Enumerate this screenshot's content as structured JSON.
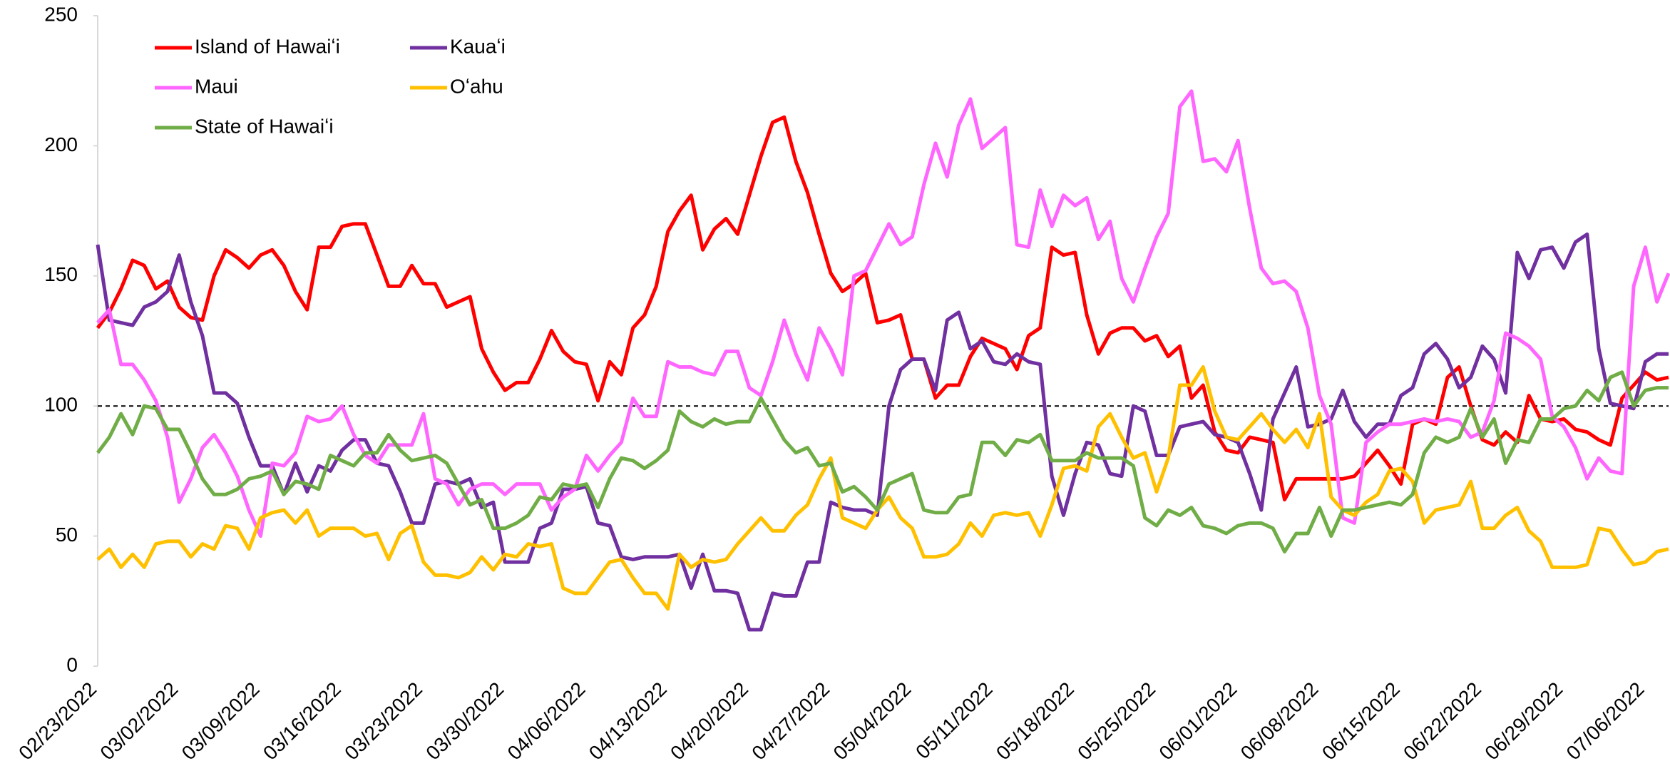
{
  "chart_data": {
    "type": "line",
    "categories": [
      "02/23/2022",
      null,
      null,
      null,
      null,
      null,
      null,
      "03/02/2022",
      null,
      null,
      null,
      null,
      null,
      null,
      "03/09/2022",
      null,
      null,
      null,
      null,
      null,
      null,
      "03/16/2022",
      null,
      null,
      null,
      null,
      null,
      null,
      "03/23/2022",
      null,
      null,
      null,
      null,
      null,
      null,
      "03/30/2022",
      null,
      null,
      null,
      null,
      null,
      null,
      "04/06/2022",
      null,
      null,
      null,
      null,
      null,
      null,
      "04/13/2022",
      null,
      null,
      null,
      null,
      null,
      null,
      "04/20/2022",
      null,
      null,
      null,
      null,
      null,
      null,
      "04/27/2022",
      null,
      null,
      null,
      null,
      null,
      null,
      "05/04/2022",
      null,
      null,
      null,
      null,
      null,
      null,
      "05/11/2022",
      null,
      null,
      null,
      null,
      null,
      null,
      "05/18/2022",
      null,
      null,
      null,
      null,
      null,
      null,
      "05/25/2022",
      null,
      null,
      null,
      null,
      null,
      null,
      "06/01/2022",
      null,
      null,
      null,
      null,
      null,
      null,
      "06/08/2022",
      null,
      null,
      null,
      null,
      null,
      null,
      "06/15/2022",
      null,
      null,
      null,
      null,
      null,
      null,
      "06/22/2022",
      null,
      null,
      null,
      null,
      null,
      null,
      "06/29/2022",
      null,
      null,
      null,
      null,
      null,
      null,
      "07/06/2022",
      null,
      null
    ],
    "series": [
      {
        "name": "Island of Hawaiʻi",
        "color": "#ff0000",
        "values": [
          130,
          136,
          145,
          156,
          154,
          145,
          148,
          138,
          134,
          133,
          150,
          160,
          157,
          153,
          158,
          160,
          154,
          144,
          137,
          161,
          161,
          169,
          170,
          170,
          158,
          146,
          146,
          154,
          147,
          147,
          138,
          140,
          142,
          122,
          113,
          106,
          109,
          109,
          118,
          129,
          121,
          117,
          116,
          102,
          117,
          112,
          130,
          135,
          146,
          167,
          175,
          181,
          160,
          168,
          172,
          166,
          181,
          196,
          209,
          211,
          194,
          182,
          166,
          151,
          144,
          147,
          151,
          132,
          133,
          135,
          118,
          118,
          103,
          108,
          108,
          119,
          126,
          124,
          122,
          114,
          127,
          130,
          161,
          158,
          159,
          135,
          120,
          128,
          130,
          130,
          125,
          127,
          119,
          123,
          103,
          108,
          90,
          83,
          82,
          88,
          87,
          86,
          64,
          72,
          72,
          72,
          72,
          72,
          73,
          78,
          83,
          77,
          70,
          93,
          95,
          93,
          111,
          115,
          100,
          87,
          85,
          90,
          86,
          104,
          95,
          94,
          95,
          91,
          90,
          87,
          85,
          103,
          108,
          113,
          110,
          111
        ]
      },
      {
        "name": "Kauaʻi",
        "color": "#7030a0",
        "values": [
          162,
          133,
          132,
          131,
          138,
          140,
          144,
          158,
          140,
          127,
          105,
          105,
          101,
          88,
          77,
          77,
          66,
          78,
          67,
          77,
          75,
          83,
          87,
          87,
          78,
          77,
          67,
          55,
          55,
          70,
          71,
          70,
          72,
          61,
          63,
          40,
          40,
          40,
          53,
          55,
          68,
          68,
          69,
          55,
          54,
          42,
          41,
          42,
          42,
          42,
          43,
          30,
          43,
          29,
          29,
          28,
          14,
          14,
          28,
          27,
          27,
          40,
          40,
          63,
          61,
          60,
          60,
          58,
          100,
          114,
          118,
          118,
          106,
          133,
          136,
          122,
          125,
          117,
          116,
          120,
          117,
          116,
          73,
          58,
          74,
          86,
          85,
          74,
          73,
          100,
          98,
          81,
          81,
          92,
          93,
          94,
          89,
          88,
          86,
          74,
          60,
          95,
          105,
          115,
          92,
          93,
          95,
          106,
          94,
          88,
          93,
          93,
          104,
          107,
          120,
          124,
          118,
          107,
          111,
          123,
          118,
          105,
          159,
          149,
          160,
          161,
          153,
          163,
          166,
          122,
          101,
          100,
          99,
          117,
          120,
          120
        ]
      },
      {
        "name": "Maui",
        "color": "#ff66ff",
        "values": [
          132,
          137,
          116,
          116,
          110,
          102,
          88,
          63,
          72,
          84,
          89,
          82,
          73,
          60,
          50,
          78,
          77,
          82,
          96,
          94,
          95,
          100,
          89,
          81,
          78,
          85,
          85,
          85,
          97,
          72,
          70,
          62,
          68,
          70,
          70,
          66,
          70,
          70,
          70,
          60,
          65,
          68,
          81,
          75,
          81,
          86,
          103,
          96,
          96,
          117,
          115,
          115,
          113,
          112,
          121,
          121,
          107,
          104,
          117,
          133,
          120,
          110,
          130,
          122,
          112,
          150,
          152,
          161,
          170,
          162,
          165,
          185,
          201,
          188,
          208,
          218,
          199,
          203,
          207,
          162,
          161,
          183,
          169,
          181,
          177,
          180,
          164,
          171,
          149,
          140,
          153,
          165,
          174,
          215,
          221,
          194,
          195,
          190,
          202,
          176,
          153,
          147,
          148,
          144,
          130,
          104,
          93,
          57,
          55,
          86,
          90,
          93,
          93,
          94,
          95,
          94,
          95,
          94,
          88,
          90,
          102,
          128,
          126,
          123,
          118,
          96,
          92,
          84,
          72,
          80,
          75,
          74,
          146,
          161,
          140,
          151
        ]
      },
      {
        "name": "Oʻahu",
        "color": "#ffc000",
        "values": [
          41,
          45,
          38,
          43,
          38,
          47,
          48,
          48,
          42,
          47,
          45,
          54,
          53,
          45,
          57,
          59,
          60,
          55,
          60,
          50,
          53,
          53,
          53,
          50,
          51,
          41,
          51,
          54,
          40,
          35,
          35,
          34,
          36,
          42,
          37,
          43,
          42,
          47,
          46,
          47,
          30,
          28,
          28,
          34,
          40,
          41,
          34,
          28,
          28,
          22,
          43,
          38,
          41,
          40,
          41,
          47,
          52,
          57,
          52,
          52,
          58,
          62,
          72,
          80,
          57,
          55,
          53,
          60,
          65,
          57,
          53,
          42,
          42,
          43,
          47,
          55,
          50,
          58,
          59,
          58,
          59,
          50,
          62,
          76,
          77,
          75,
          92,
          97,
          88,
          80,
          82,
          67,
          80,
          108,
          108,
          115,
          98,
          88,
          87,
          92,
          97,
          91,
          86,
          91,
          84,
          97,
          65,
          60,
          58,
          63,
          66,
          75,
          76,
          71,
          55,
          60,
          61,
          62,
          71,
          53,
          53,
          58,
          61,
          52,
          48,
          38,
          38,
          38,
          39,
          53,
          52,
          45,
          39,
          40,
          44,
          45
        ]
      },
      {
        "name": "State of Hawaiʻi",
        "color": "#70ad47",
        "values": [
          82,
          88,
          97,
          89,
          100,
          99,
          91,
          91,
          82,
          72,
          66,
          66,
          68,
          72,
          73,
          75,
          66,
          71,
          70,
          68,
          81,
          79,
          77,
          82,
          82,
          89,
          83,
          79,
          80,
          81,
          78,
          70,
          62,
          64,
          53,
          53,
          55,
          58,
          65,
          64,
          70,
          69,
          70,
          61,
          72,
          80,
          79,
          76,
          79,
          83,
          98,
          94,
          92,
          95,
          93,
          94,
          94,
          103,
          95,
          87,
          82,
          84,
          77,
          78,
          67,
          69,
          65,
          60,
          70,
          72,
          74,
          60,
          59,
          59,
          65,
          66,
          86,
          86,
          81,
          87,
          86,
          89,
          79,
          79,
          79,
          82,
          80,
          80,
          80,
          77,
          57,
          54,
          60,
          58,
          61,
          54,
          53,
          51,
          54,
          55,
          55,
          53,
          44,
          51,
          51,
          61,
          50,
          60,
          60,
          61,
          62,
          63,
          62,
          66,
          82,
          88,
          86,
          88,
          99,
          88,
          95,
          78,
          87,
          86,
          95,
          95,
          99,
          100,
          106,
          102,
          111,
          113,
          100,
          106,
          107,
          107
        ]
      }
    ],
    "ylim": [
      0,
      250
    ],
    "yticks": [
      0,
      50,
      100,
      150,
      200,
      250
    ],
    "reference_line": 100,
    "grid": false,
    "legend": "upper left"
  }
}
